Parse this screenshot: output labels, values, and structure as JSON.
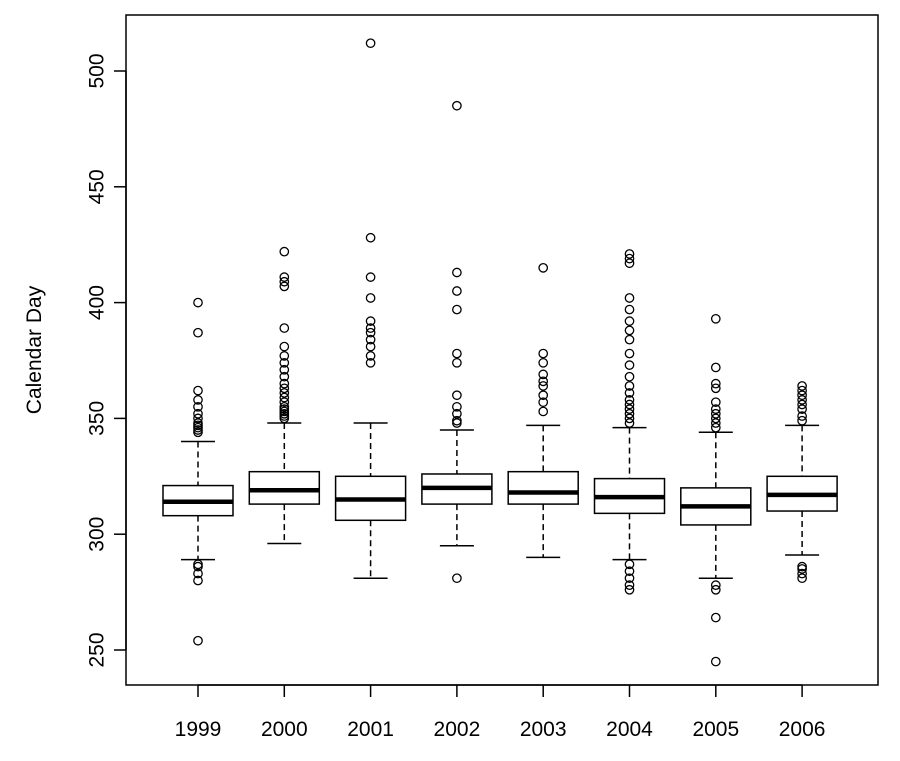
{
  "chart_data": {
    "type": "boxplot",
    "title": "",
    "xlabel": "",
    "ylabel": "Calendar Day",
    "ylim": [
      235,
      525
    ],
    "yticks": [
      250,
      300,
      350,
      400,
      450,
      500
    ],
    "grid": false,
    "legend": "none",
    "categories": [
      "1999",
      "2000",
      "2001",
      "2002",
      "2003",
      "2004",
      "2005",
      "2006"
    ],
    "boxes": [
      {
        "category": "1999",
        "whisker_low": 289,
        "q1": 308,
        "median": 314,
        "q3": 321,
        "whisker_high": 340,
        "outliers": [
          254,
          280,
          283,
          286,
          287,
          344,
          345,
          346,
          347,
          348,
          350,
          352,
          355,
          358,
          362,
          387,
          400
        ]
      },
      {
        "category": "2000",
        "whisker_low": 296,
        "q1": 313,
        "median": 319,
        "q3": 327,
        "whisker_high": 348,
        "outliers": [
          350,
          351,
          352,
          353,
          354,
          355,
          357,
          359,
          361,
          363,
          365,
          368,
          371,
          374,
          377,
          381,
          389,
          407,
          409,
          411,
          422
        ]
      },
      {
        "category": "2001",
        "whisker_low": 281,
        "q1": 306,
        "median": 315,
        "q3": 325,
        "whisker_high": 348,
        "outliers": [
          374,
          377,
          381,
          384,
          387,
          389,
          392,
          402,
          411,
          428,
          512
        ]
      },
      {
        "category": "2002",
        "whisker_low": 295,
        "q1": 313,
        "median": 320,
        "q3": 326,
        "whisker_high": 345,
        "outliers": [
          281,
          348,
          349,
          352,
          355,
          360,
          374,
          378,
          397,
          405,
          413,
          485
        ]
      },
      {
        "category": "2003",
        "whisker_low": 290,
        "q1": 313,
        "median": 318,
        "q3": 327,
        "whisker_high": 347,
        "outliers": [
          353,
          357,
          360,
          364,
          366,
          369,
          374,
          378,
          415
        ]
      },
      {
        "category": "2004",
        "whisker_low": 289,
        "q1": 309,
        "median": 316,
        "q3": 324,
        "whisker_high": 346,
        "outliers": [
          276,
          278,
          281,
          284,
          287,
          348,
          350,
          352,
          354,
          356,
          358,
          361,
          364,
          368,
          373,
          378,
          384,
          388,
          392,
          397,
          402,
          417,
          419,
          421
        ]
      },
      {
        "category": "2005",
        "whisker_low": 281,
        "q1": 304,
        "median": 312,
        "q3": 320,
        "whisker_high": 344,
        "outliers": [
          245,
          264,
          276,
          278,
          346,
          348,
          350,
          352,
          354,
          357,
          363,
          365,
          372,
          393
        ]
      },
      {
        "category": "2006",
        "whisker_low": 291,
        "q1": 310,
        "median": 317,
        "q3": 325,
        "whisker_high": 347,
        "outliers": [
          281,
          283,
          285,
          286,
          349,
          351,
          354,
          356,
          358,
          360,
          362,
          364
        ]
      }
    ]
  }
}
